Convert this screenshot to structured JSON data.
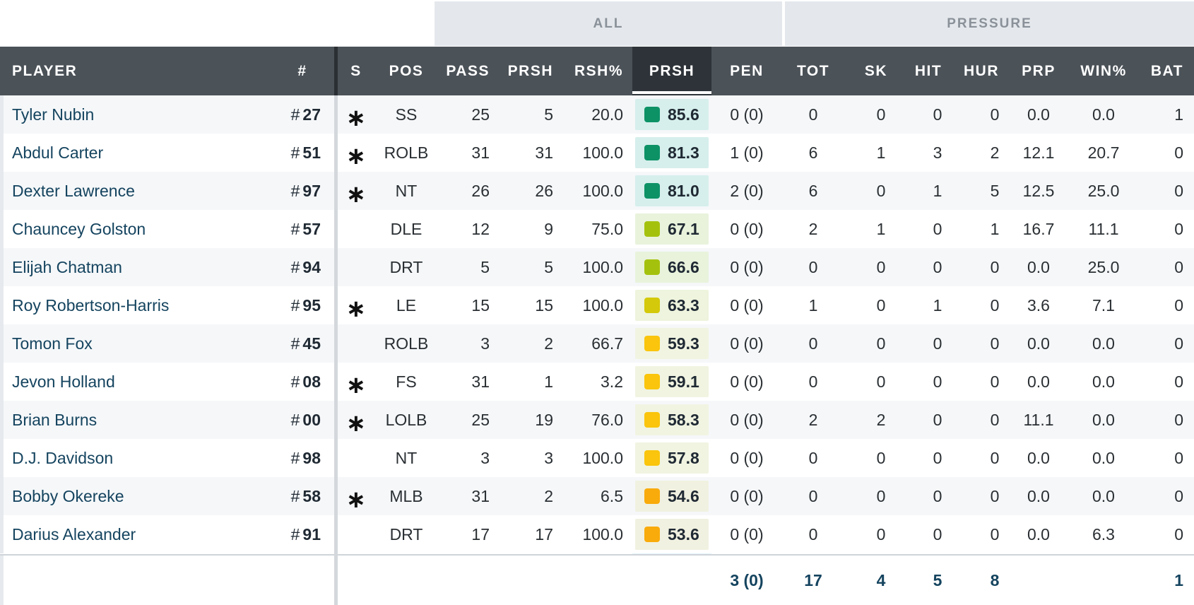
{
  "group_headers": {
    "all": "ALL",
    "pressure": "PRESSURE"
  },
  "columns": {
    "player": "PLAYER",
    "jersey": "#",
    "s": "S",
    "pos": "POS",
    "pass": "PASS",
    "prsh": "PRSH",
    "rsh_pct": "RSH%",
    "prsh_grade": "PRSH",
    "pen": "PEN",
    "tot": "TOT",
    "sk": "SK",
    "hit": "HIT",
    "hur": "HUR",
    "prp": "PRP",
    "win_pct": "WIN%",
    "bat": "BAT"
  },
  "jersey_prefix": "#",
  "starter_mark": "∗",
  "grade_colors": {
    "elite": "#0d9266",
    "high": "#a4c20d",
    "good": "#d4c90a",
    "avg": "#fac50c",
    "below": "#f9ab0b"
  },
  "grade_bg_colors": {
    "elite": "#d6efec",
    "high": "#e9f3dc",
    "good": "#eef4dd",
    "avg": "#f1f4e1",
    "below": "#f1f1e1"
  },
  "players": [
    {
      "name": "Tyler Nubin",
      "num": "27",
      "starter": true,
      "pos": "SS",
      "pass": "25",
      "prsh": "5",
      "rsh_pct": "20.0",
      "grade": "85.6",
      "tier": "elite",
      "pen": "0 (0)",
      "tot": "0",
      "sk": "0",
      "hit": "0",
      "hur": "0",
      "prp": "0.0",
      "win_pct": "0.0",
      "bat": "1"
    },
    {
      "name": "Abdul Carter",
      "num": "51",
      "starter": true,
      "pos": "ROLB",
      "pass": "31",
      "prsh": "31",
      "rsh_pct": "100.0",
      "grade": "81.3",
      "tier": "elite",
      "pen": "1 (0)",
      "tot": "6",
      "sk": "1",
      "hit": "3",
      "hur": "2",
      "prp": "12.1",
      "win_pct": "20.7",
      "bat": "0"
    },
    {
      "name": "Dexter Lawrence",
      "num": "97",
      "starter": true,
      "pos": "NT",
      "pass": "26",
      "prsh": "26",
      "rsh_pct": "100.0",
      "grade": "81.0",
      "tier": "elite",
      "pen": "2 (0)",
      "tot": "6",
      "sk": "0",
      "hit": "1",
      "hur": "5",
      "prp": "12.5",
      "win_pct": "25.0",
      "bat": "0"
    },
    {
      "name": "Chauncey Golston",
      "num": "57",
      "starter": false,
      "pos": "DLE",
      "pass": "12",
      "prsh": "9",
      "rsh_pct": "75.0",
      "grade": "67.1",
      "tier": "high",
      "pen": "0 (0)",
      "tot": "2",
      "sk": "1",
      "hit": "0",
      "hur": "1",
      "prp": "16.7",
      "win_pct": "11.1",
      "bat": "0"
    },
    {
      "name": "Elijah Chatman",
      "num": "94",
      "starter": false,
      "pos": "DRT",
      "pass": "5",
      "prsh": "5",
      "rsh_pct": "100.0",
      "grade": "66.6",
      "tier": "high",
      "pen": "0 (0)",
      "tot": "0",
      "sk": "0",
      "hit": "0",
      "hur": "0",
      "prp": "0.0",
      "win_pct": "25.0",
      "bat": "0"
    },
    {
      "name": "Roy Robertson-Harris",
      "num": "95",
      "starter": true,
      "pos": "LE",
      "pass": "15",
      "prsh": "15",
      "rsh_pct": "100.0",
      "grade": "63.3",
      "tier": "good",
      "pen": "0 (0)",
      "tot": "1",
      "sk": "0",
      "hit": "1",
      "hur": "0",
      "prp": "3.6",
      "win_pct": "7.1",
      "bat": "0"
    },
    {
      "name": "Tomon Fox",
      "num": "45",
      "starter": false,
      "pos": "ROLB",
      "pass": "3",
      "prsh": "2",
      "rsh_pct": "66.7",
      "grade": "59.3",
      "tier": "avg",
      "pen": "0 (0)",
      "tot": "0",
      "sk": "0",
      "hit": "0",
      "hur": "0",
      "prp": "0.0",
      "win_pct": "0.0",
      "bat": "0"
    },
    {
      "name": "Jevon Holland",
      "num": "08",
      "starter": true,
      "pos": "FS",
      "pass": "31",
      "prsh": "1",
      "rsh_pct": "3.2",
      "grade": "59.1",
      "tier": "avg",
      "pen": "0 (0)",
      "tot": "0",
      "sk": "0",
      "hit": "0",
      "hur": "0",
      "prp": "0.0",
      "win_pct": "0.0",
      "bat": "0"
    },
    {
      "name": "Brian Burns",
      "num": "00",
      "starter": true,
      "pos": "LOLB",
      "pass": "25",
      "prsh": "19",
      "rsh_pct": "76.0",
      "grade": "58.3",
      "tier": "avg",
      "pen": "0 (0)",
      "tot": "2",
      "sk": "2",
      "hit": "0",
      "hur": "0",
      "prp": "11.1",
      "win_pct": "0.0",
      "bat": "0"
    },
    {
      "name": "D.J. Davidson",
      "num": "98",
      "starter": false,
      "pos": "NT",
      "pass": "3",
      "prsh": "3",
      "rsh_pct": "100.0",
      "grade": "57.8",
      "tier": "avg",
      "pen": "0 (0)",
      "tot": "0",
      "sk": "0",
      "hit": "0",
      "hur": "0",
      "prp": "0.0",
      "win_pct": "0.0",
      "bat": "0"
    },
    {
      "name": "Bobby Okereke",
      "num": "58",
      "starter": true,
      "pos": "MLB",
      "pass": "31",
      "prsh": "2",
      "rsh_pct": "6.5",
      "grade": "54.6",
      "tier": "below",
      "pen": "0 (0)",
      "tot": "0",
      "sk": "0",
      "hit": "0",
      "hur": "0",
      "prp": "0.0",
      "win_pct": "0.0",
      "bat": "0"
    },
    {
      "name": "Darius Alexander",
      "num": "91",
      "starter": false,
      "pos": "DRT",
      "pass": "17",
      "prsh": "17",
      "rsh_pct": "100.0",
      "grade": "53.6",
      "tier": "below",
      "pen": "0 (0)",
      "tot": "0",
      "sk": "0",
      "hit": "0",
      "hur": "0",
      "prp": "0.0",
      "win_pct": "6.3",
      "bat": "0"
    }
  ],
  "totals": {
    "pen": "3 (0)",
    "tot": "17",
    "sk": "4",
    "hit": "5",
    "hur": "8",
    "bat": "1"
  }
}
